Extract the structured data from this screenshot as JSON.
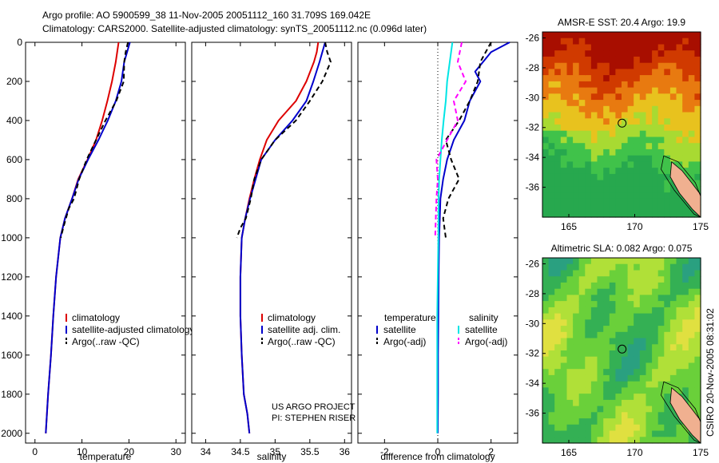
{
  "header": {
    "line1": "Argo profile: AO 5900599_38 11-Nov-2005 20051112_160 31.709S 169.042E",
    "line2": "Climatology: CARS2000. Satellite-adjusted climatology: synTS_20051112.nc (0.096d later)"
  },
  "credit": {
    "project": "US ARGO PROJECT",
    "pi": "PI: STEPHEN RISER",
    "stamp": "CSIRO 20-Nov-2005 08:31:02"
  },
  "colors": {
    "climatology": "#dd0000",
    "satellite": "#0000cc",
    "argo": "#000000",
    "salinity_satellite": "#00e5e5",
    "salinity_argo": "#ff00ff"
  },
  "chart_data": [
    {
      "type": "line",
      "xlabel": "temperature",
      "ylabel": "",
      "xlim": [
        -2,
        32
      ],
      "ylim": [
        2050,
        0
      ],
      "xticks": [
        0,
        10,
        20,
        30
      ],
      "yticks": [
        0,
        200,
        400,
        600,
        800,
        1000,
        1200,
        1400,
        1600,
        1800,
        2000
      ],
      "legend": [
        "climatology",
        "satellite-adjusted climatology",
        "Argo(..raw -QC)"
      ],
      "series": [
        {
          "name": "climatology",
          "color": "#dd0000",
          "style": "solid",
          "x": [
            17.8,
            17.5,
            17.2,
            16.4,
            15.4,
            14.3,
            13.0,
            11.2,
            9.2,
            7.9,
            6.4,
            5.4,
            4.5,
            3.9,
            3.4,
            2.8,
            2.3
          ],
          "y": [
            0,
            50,
            100,
            200,
            300,
            400,
            500,
            600,
            700,
            800,
            900,
            1000,
            1200,
            1400,
            1600,
            1800,
            2000
          ]
        },
        {
          "name": "satellite-adjusted climatology",
          "color": "#0000cc",
          "style": "solid",
          "x": [
            20.2,
            19.6,
            19.0,
            18.4,
            17.2,
            15.5,
            13.5,
            11.3,
            9.3,
            7.9,
            6.4,
            5.4,
            4.5,
            3.9,
            3.4,
            2.8,
            2.3
          ],
          "y": [
            0,
            50,
            100,
            200,
            300,
            400,
            500,
            600,
            700,
            800,
            900,
            1000,
            1200,
            1400,
            1600,
            1800,
            2000
          ]
        },
        {
          "name": "Argo(..raw -QC)",
          "color": "#000000",
          "style": "dashed",
          "x": [
            19.8,
            19.3,
            19.0,
            18.9,
            17.3,
            15.0,
            13.0,
            11.0,
            9.4,
            8.3,
            7.2,
            6.0,
            5.5
          ],
          "y": [
            0,
            50,
            100,
            200,
            300,
            400,
            500,
            600,
            700,
            800,
            850,
            950,
            1000
          ]
        }
      ]
    },
    {
      "type": "line",
      "xlabel": "salinity",
      "ylabel": "",
      "xlim": [
        33.8,
        36.1
      ],
      "ylim": [
        2050,
        0
      ],
      "xticks": [
        34,
        34.5,
        35,
        35.5,
        36
      ],
      "yticks": [
        0,
        200,
        400,
        600,
        800,
        1000,
        1200,
        1400,
        1600,
        1800,
        2000
      ],
      "legend": [
        "climatology",
        "satellite adj. clim.",
        "Argo(..raw -QC)"
      ],
      "series": [
        {
          "name": "climatology",
          "color": "#dd0000",
          "style": "solid",
          "x": [
            35.62,
            35.6,
            35.56,
            35.45,
            35.3,
            35.05,
            34.88,
            34.78,
            34.7,
            34.63,
            34.57,
            34.52,
            34.5,
            34.5,
            34.52,
            34.55,
            34.6,
            34.63
          ],
          "y": [
            0,
            50,
            100,
            200,
            300,
            400,
            500,
            600,
            700,
            800,
            900,
            1000,
            1200,
            1400,
            1600,
            1800,
            1900,
            2000
          ]
        },
        {
          "name": "satellite adj. clim.",
          "color": "#0000cc",
          "style": "solid",
          "x": [
            35.72,
            35.68,
            35.64,
            35.55,
            35.45,
            35.25,
            35.0,
            34.8,
            34.72,
            34.64,
            34.57,
            34.52,
            34.5,
            34.5,
            34.52,
            34.55,
            34.6,
            34.63
          ],
          "y": [
            0,
            50,
            100,
            200,
            300,
            400,
            500,
            600,
            700,
            800,
            900,
            1000,
            1200,
            1400,
            1600,
            1800,
            1900,
            2000
          ]
        },
        {
          "name": "Argo(..raw -QC)",
          "color": "#000000",
          "style": "dashed",
          "x": [
            35.72,
            35.75,
            35.8,
            35.68,
            35.5,
            35.3,
            35.0,
            34.8,
            34.7,
            34.65,
            34.58,
            34.5,
            34.45
          ],
          "y": [
            0,
            50,
            100,
            200,
            300,
            400,
            500,
            600,
            700,
            800,
            900,
            950,
            1000
          ]
        }
      ]
    },
    {
      "type": "line",
      "xlabel": "difference from climatology",
      "ylabel": "",
      "xlim": [
        -3,
        3
      ],
      "ylim": [
        2050,
        0
      ],
      "xticks": [
        -2,
        0,
        2
      ],
      "yticks": [
        0,
        200,
        400,
        600,
        800,
        1000,
        1200,
        1400,
        1600,
        1800,
        2000
      ],
      "legend_groups": [
        {
          "title": "temperature",
          "entries": [
            "satellite",
            "Argo(-adj)"
          ]
        },
        {
          "title": "salinity",
          "entries": [
            "satellite",
            "Argo(-adj)"
          ]
        }
      ],
      "series": [
        {
          "name": "satellite",
          "group": "temperature",
          "color": "#0000cc",
          "style": "solid",
          "x": [
            2.7,
            2.0,
            1.7,
            1.4,
            1.6,
            1.2,
            1.0,
            0.6,
            0.35,
            0.2,
            0.1,
            0.05,
            0.03,
            0.02,
            0.01,
            0.01,
            0.0
          ],
          "y": [
            0,
            50,
            100,
            150,
            200,
            300,
            400,
            500,
            600,
            700,
            800,
            1000,
            1200,
            1400,
            1600,
            1800,
            2000
          ]
        },
        {
          "name": "Argo(-adj)",
          "group": "temperature",
          "color": "#000000",
          "style": "dashed",
          "x": [
            2.0,
            1.8,
            1.6,
            1.5,
            1.2,
            0.8,
            0.3,
            0.5,
            0.8,
            0.4,
            0.2,
            0.3
          ],
          "y": [
            0,
            50,
            100,
            200,
            300,
            400,
            500,
            600,
            700,
            800,
            900,
            1000
          ]
        },
        {
          "name": "satellite",
          "group": "salinity",
          "color": "#00e5e5",
          "style": "solid",
          "x": [
            0.55,
            0.45,
            0.35,
            0.3,
            0.22,
            0.15,
            0.1,
            0.05,
            0.03,
            0.02,
            0.0,
            -0.02,
            -0.02,
            -0.02,
            -0.02,
            -0.02
          ],
          "y": [
            0,
            100,
            200,
            300,
            400,
            500,
            600,
            700,
            800,
            1000,
            1200,
            1400,
            1600,
            1800,
            1900,
            2000
          ]
        },
        {
          "name": "Argo(-adj)",
          "group": "salinity",
          "color": "#ff00ff",
          "style": "dashed",
          "x": [
            0.9,
            0.75,
            1.05,
            0.6,
            0.75,
            0.35,
            -0.05,
            0.0,
            -0.05,
            -0.1
          ],
          "y": [
            0,
            100,
            200,
            300,
            400,
            500,
            600,
            700,
            800,
            1000
          ]
        }
      ]
    },
    {
      "type": "heatmap",
      "title": "AMSR-E SST: 20.4 Argo: 19.9",
      "xlim": [
        163,
        175
      ],
      "ylim": [
        -38,
        -25.6
      ],
      "xticks": [
        165,
        170,
        175
      ],
      "yticks": [
        -26,
        -28,
        -30,
        -32,
        -34,
        -36
      ],
      "marker": {
        "lon": 169.042,
        "lat": -31.709
      },
      "colormap": [
        "#a80e00",
        "#d03a00",
        "#e87a10",
        "#e8c21e",
        "#a8da32",
        "#40c24a",
        "#27a84e"
      ]
    },
    {
      "type": "heatmap",
      "title": "Altimetric SLA: 0.082 Argo: 0.075",
      "xlim": [
        163,
        175
      ],
      "ylim": [
        -38,
        -25.6
      ],
      "xticks": [
        165,
        170,
        175
      ],
      "yticks": [
        -26,
        -28,
        -30,
        -32,
        -34,
        -36
      ],
      "marker": {
        "lon": 169.042,
        "lat": -31.709
      },
      "colormap": [
        "#2aa080",
        "#34b054",
        "#6ad03a",
        "#b0e038",
        "#e0e040"
      ]
    }
  ]
}
